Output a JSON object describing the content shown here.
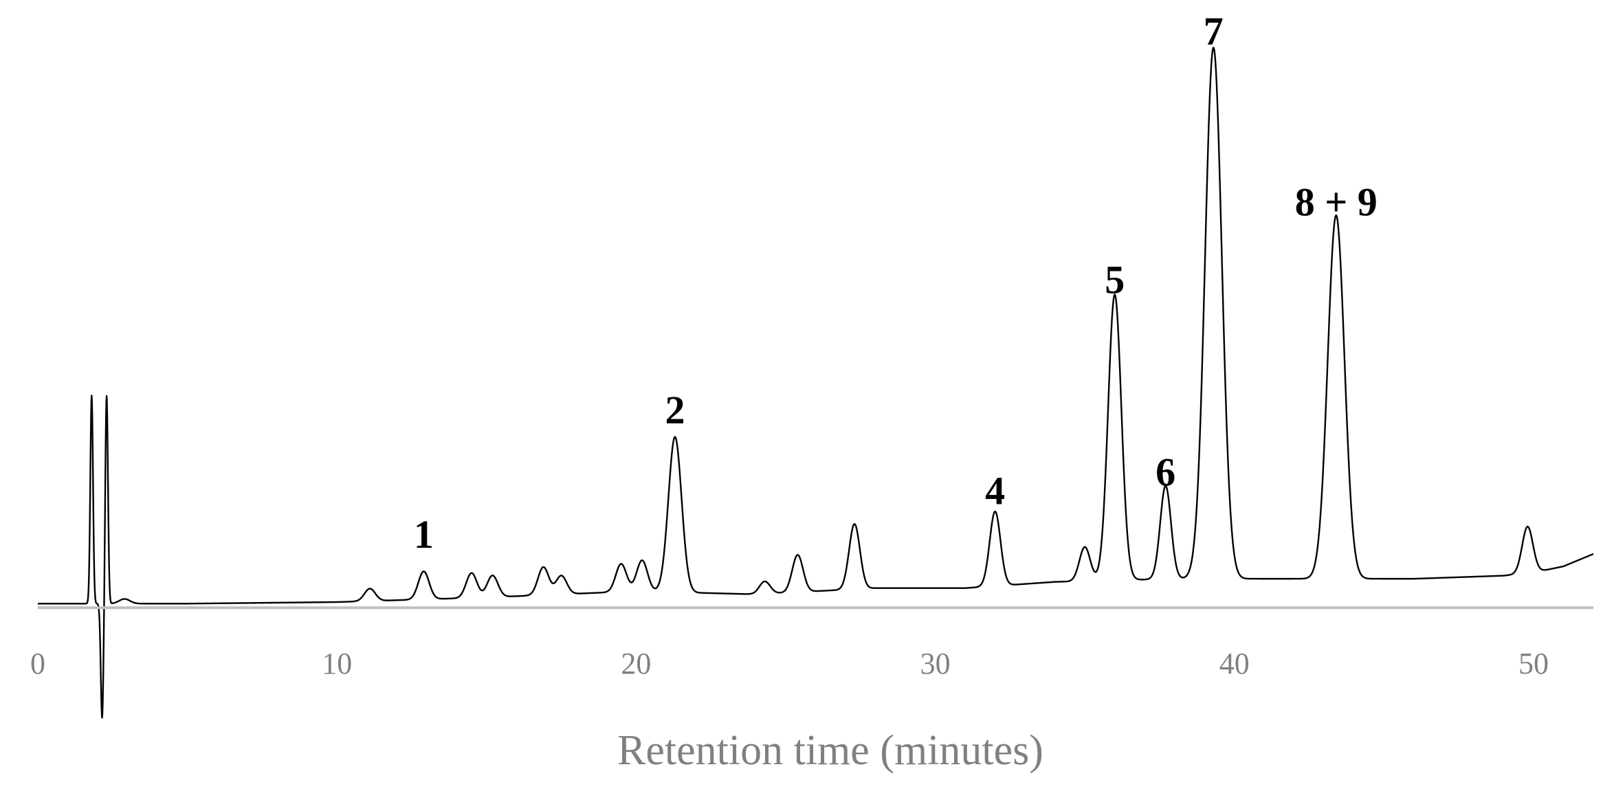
{
  "chart_data": {
    "type": "line",
    "xlabel": "Retention time (minutes)",
    "ylabel": "",
    "xlim": [
      0,
      52
    ],
    "ylim": [
      -38,
      170
    ],
    "x_ticks": [
      "0",
      "10",
      "20",
      "30",
      "40",
      "50"
    ],
    "grid": false,
    "legend": "none",
    "colors": {
      "trace": "#000000",
      "axis": "#bfbfbf",
      "text": "#808080"
    },
    "baseline": [
      [
        0,
        0
      ],
      [
        5,
        0
      ],
      [
        10,
        0.5
      ],
      [
        15,
        2
      ],
      [
        20,
        4
      ],
      [
        24,
        3
      ],
      [
        28,
        5
      ],
      [
        31,
        5
      ],
      [
        34,
        7
      ],
      [
        38,
        8
      ],
      [
        42,
        8
      ],
      [
        46,
        8
      ],
      [
        49,
        9
      ],
      [
        50,
        10
      ],
      [
        51,
        12
      ],
      [
        52,
        16
      ]
    ],
    "solvent_front": [
      {
        "x": 1.8,
        "y": 67
      },
      {
        "x": 2.15,
        "y": -37
      },
      {
        "x": 2.3,
        "y": 67
      }
    ],
    "peaks": [
      {
        "x": 2.9,
        "y": 1.5
      },
      {
        "x": 11.1,
        "y": 4
      },
      {
        "x": 12.9,
        "y": 9
      },
      {
        "x": 14.5,
        "y": 8
      },
      {
        "x": 15.2,
        "y": 7
      },
      {
        "x": 16.9,
        "y": 9
      },
      {
        "x": 17.5,
        "y": 6
      },
      {
        "x": 19.5,
        "y": 9
      },
      {
        "x": 20.2,
        "y": 10
      },
      {
        "x": 21.3,
        "y": 50
      },
      {
        "x": 24.3,
        "y": 4
      },
      {
        "x": 25.4,
        "y": 12
      },
      {
        "x": 27.3,
        "y": 21
      },
      {
        "x": 32.0,
        "y": 24
      },
      {
        "x": 35.0,
        "y": 11
      },
      {
        "x": 36.0,
        "y": 92
      },
      {
        "x": 37.7,
        "y": 30
      },
      {
        "x": 39.3,
        "y": 171
      },
      {
        "x": 43.4,
        "y": 117
      },
      {
        "x": 49.8,
        "y": 15
      }
    ],
    "annotations": [
      {
        "text": "1",
        "x": 12.9,
        "y": 18
      },
      {
        "text": "2",
        "x": 21.3,
        "y": 58
      },
      {
        "text": "4",
        "x": 32.0,
        "y": 32
      },
      {
        "text": "5",
        "x": 36.0,
        "y": 100
      },
      {
        "text": "6",
        "x": 37.7,
        "y": 38
      },
      {
        "text": "7",
        "x": 39.3,
        "y": 180
      },
      {
        "text": "8 + 9",
        "x": 43.4,
        "y": 125
      }
    ]
  }
}
